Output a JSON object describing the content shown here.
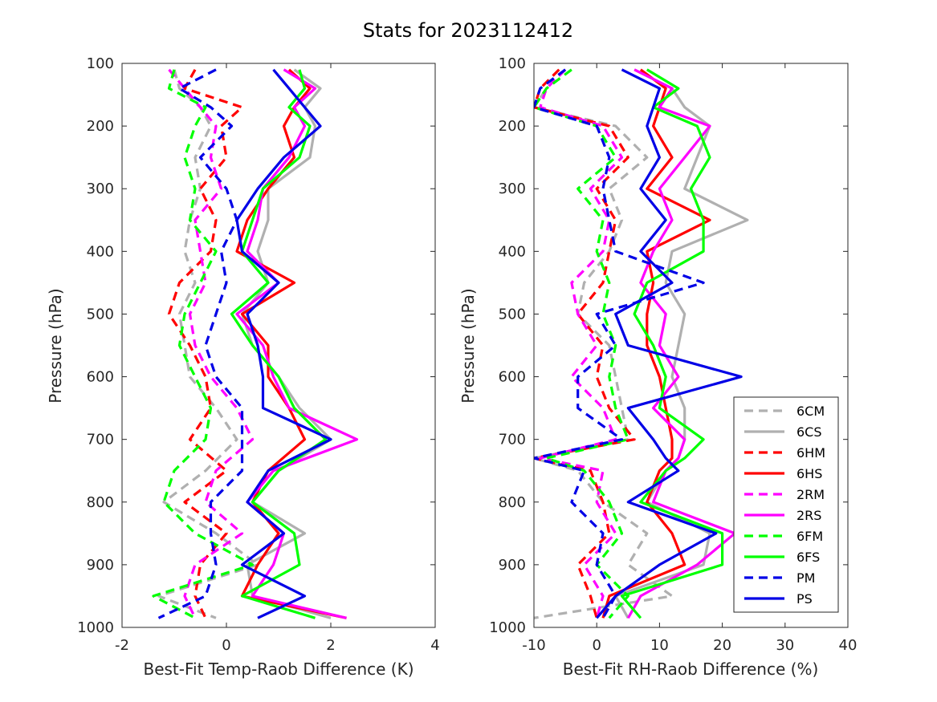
{
  "title": "Stats for 2023112412",
  "colors": {
    "6C": "#b0b0b0",
    "6H": "#ff0000",
    "2R": "#ff00ff",
    "6F": "#00ff00",
    "P": "#0000e6"
  },
  "legend": {
    "placement": "lower-right",
    "entries": [
      {
        "label": "6CM",
        "color": "#b0b0b0",
        "dash": true
      },
      {
        "label": "6CS",
        "color": "#b0b0b0",
        "dash": false
      },
      {
        "label": "6HM",
        "color": "#ff0000",
        "dash": true
      },
      {
        "label": "6HS",
        "color": "#ff0000",
        "dash": false
      },
      {
        "label": "2RM",
        "color": "#ff00ff",
        "dash": true
      },
      {
        "label": "2RS",
        "color": "#ff00ff",
        "dash": false
      },
      {
        "label": "6FM",
        "color": "#00ff00",
        "dash": true
      },
      {
        "label": "6FS",
        "color": "#00ff00",
        "dash": false
      },
      {
        "label": "PM",
        "color": "#0000e6",
        "dash": true
      },
      {
        "label": "PS",
        "color": "#0000e6",
        "dash": false
      }
    ]
  },
  "chart_data": [
    {
      "type": "line",
      "xlabel": "Best-Fit Temp-Raob Difference (K)",
      "ylabel": "Pressure (hPa)",
      "xlim": [
        -2,
        4
      ],
      "ylim": [
        100,
        1000
      ],
      "y_reversed": true,
      "xticks": [
        "-2",
        "0",
        "2",
        "4"
      ],
      "yticks": [
        "100",
        "200",
        "300",
        "400",
        "500",
        "600",
        "700",
        "800",
        "900",
        "1000"
      ],
      "y": [
        110,
        140,
        170,
        200,
        250,
        300,
        350,
        400,
        450,
        500,
        550,
        600,
        650,
        700,
        750,
        800,
        850,
        900,
        950,
        985
      ],
      "series": [
        {
          "name": "6CM",
          "values": [
            -1.0,
            -0.9,
            -0.5,
            -0.3,
            -0.6,
            -0.5,
            -0.7,
            -0.8,
            -0.6,
            -0.9,
            -0.8,
            -0.7,
            -0.2,
            0.2,
            -0.4,
            -1.2,
            -0.2,
            0.6,
            -1.3,
            -0.2
          ]
        },
        {
          "name": "6CS",
          "values": [
            1.3,
            1.8,
            1.5,
            1.7,
            1.6,
            0.8,
            0.8,
            0.6,
            0.8,
            0.3,
            0.5,
            1.0,
            1.4,
            2.0,
            1.0,
            0.5,
            1.5,
            0.4,
            0.5,
            2.0
          ]
        },
        {
          "name": "6HM",
          "values": [
            -0.6,
            -0.8,
            0.3,
            -0.1,
            0.0,
            -0.5,
            -0.2,
            -0.3,
            -0.9,
            -1.1,
            -0.7,
            -0.4,
            -0.3,
            -0.7,
            0.0,
            -0.8,
            0.0,
            -0.5,
            -0.6,
            -0.4
          ]
        },
        {
          "name": "6HS",
          "values": [
            1.2,
            1.6,
            1.3,
            1.1,
            1.3,
            0.8,
            0.4,
            0.2,
            1.3,
            0.3,
            0.8,
            0.8,
            1.2,
            1.5,
            0.8,
            0.5,
            1.0,
            0.6,
            0.3,
            2.3
          ]
        },
        {
          "name": "2RM",
          "values": [
            -1.1,
            -0.8,
            -0.5,
            -0.2,
            -0.3,
            -0.1,
            -0.6,
            -0.5,
            -0.4,
            -0.7,
            -0.6,
            -0.3,
            0.2,
            0.5,
            -0.2,
            -0.4,
            0.3,
            -0.6,
            -0.8,
            -0.6
          ]
        },
        {
          "name": "2RS",
          "values": [
            1.1,
            1.7,
            1.3,
            1.5,
            1.2,
            0.7,
            0.6,
            0.4,
            1.0,
            0.2,
            0.7,
            0.9,
            1.2,
            2.5,
            0.9,
            0.4,
            1.1,
            0.9,
            0.5,
            2.3
          ]
        },
        {
          "name": "6FM",
          "values": [
            -1.0,
            -1.1,
            -0.4,
            -0.6,
            -0.8,
            -0.6,
            -0.7,
            -0.2,
            -0.5,
            -0.8,
            -0.9,
            -0.6,
            -0.3,
            -0.4,
            -1.0,
            -1.2,
            -0.6,
            0.5,
            -1.4,
            -0.6
          ]
        },
        {
          "name": "6FS",
          "values": [
            1.4,
            1.5,
            1.2,
            1.6,
            1.4,
            0.7,
            0.5,
            0.3,
            0.8,
            0.1,
            0.5,
            1.0,
            1.3,
            1.9,
            1.0,
            0.5,
            1.3,
            1.4,
            0.3,
            1.7
          ]
        },
        {
          "name": "PM",
          "values": [
            -0.2,
            -0.9,
            -0.3,
            0.1,
            -0.5,
            0.0,
            0.2,
            -0.1,
            0.0,
            -0.2,
            -0.4,
            -0.2,
            0.3,
            0.3,
            0.3,
            -0.3,
            -0.3,
            -0.2,
            -0.4,
            -1.3
          ]
        },
        {
          "name": "PS",
          "values": [
            0.9,
            1.2,
            1.5,
            1.8,
            1.1,
            0.6,
            0.2,
            0.3,
            1.0,
            0.4,
            0.6,
            0.7,
            0.7,
            2.0,
            0.8,
            0.4,
            1.1,
            0.3,
            1.5,
            0.6
          ]
        }
      ]
    },
    {
      "type": "line",
      "xlabel": "Best-Fit RH-Raob Difference (%)",
      "ylabel": "Pressure (hPa)",
      "xlim": [
        -10,
        40
      ],
      "ylim": [
        100,
        1000
      ],
      "y_reversed": true,
      "xticks": [
        "-10",
        "0",
        "10",
        "20",
        "30",
        "40"
      ],
      "yticks": [
        "100",
        "200",
        "300",
        "400",
        "500",
        "600",
        "700",
        "800",
        "900",
        "1000"
      ],
      "y": [
        110,
        140,
        170,
        200,
        250,
        300,
        350,
        400,
        450,
        500,
        550,
        600,
        650,
        700,
        730,
        750,
        800,
        850,
        900,
        950,
        985
      ],
      "series": [
        {
          "name": "6CM",
          "values": [
            -5,
            -8,
            -10,
            3,
            8,
            2,
            4,
            2,
            -2,
            -3,
            2,
            3,
            4,
            5,
            -10,
            -3,
            1,
            8,
            5,
            12,
            -10
          ]
        },
        {
          "name": "6CS",
          "values": [
            6,
            12,
            14,
            18,
            16,
            14,
            24,
            12,
            11,
            14,
            13,
            12,
            14,
            14,
            13,
            11,
            8,
            18,
            17,
            3,
            5
          ]
        },
        {
          "name": "6HM",
          "values": [
            -6,
            -9,
            -10,
            2,
            5,
            0,
            3,
            2,
            1,
            -3,
            1,
            0,
            2,
            6,
            -10,
            -1,
            1,
            2,
            -3,
            -1,
            0
          ]
        },
        {
          "name": "6HS",
          "values": [
            7,
            11,
            10,
            9,
            12,
            8,
            18,
            8,
            9,
            8,
            8,
            10,
            11,
            12,
            12,
            10,
            8,
            12,
            14,
            2,
            1
          ]
        },
        {
          "name": "2RM",
          "values": [
            -5,
            -8,
            -9,
            1,
            4,
            -1,
            2,
            1,
            -4,
            -3,
            0,
            -4,
            1,
            3,
            -9,
            1,
            0,
            3,
            -2,
            1,
            0
          ]
        },
        {
          "name": "2RS",
          "values": [
            6,
            12,
            10,
            18,
            14,
            10,
            12,
            9,
            7,
            11,
            10,
            13,
            9,
            14,
            13,
            11,
            9,
            22,
            16,
            7,
            5
          ]
        },
        {
          "name": "6FM",
          "values": [
            -4,
            -8,
            -10,
            0,
            3,
            -3,
            1,
            0,
            2,
            1,
            3,
            2,
            3,
            5,
            -8,
            -2,
            2,
            4,
            0,
            5,
            2
          ]
        },
        {
          "name": "6FS",
          "values": [
            8,
            13,
            9,
            16,
            18,
            15,
            17,
            17,
            8,
            6,
            9,
            11,
            10,
            17,
            14,
            11,
            7,
            20,
            20,
            4,
            7
          ]
        },
        {
          "name": "PM",
          "values": [
            -5,
            -9,
            -10,
            0,
            2,
            1,
            2,
            3,
            17,
            0,
            3,
            -3,
            -3,
            4,
            -10,
            -2,
            -4,
            1,
            0,
            3,
            1
          ]
        },
        {
          "name": "PS",
          "values": [
            4,
            10,
            9,
            8,
            10,
            7,
            11,
            7,
            12,
            3,
            5,
            23,
            5,
            9,
            11,
            13,
            5,
            19,
            10,
            3,
            0
          ]
        }
      ]
    }
  ]
}
